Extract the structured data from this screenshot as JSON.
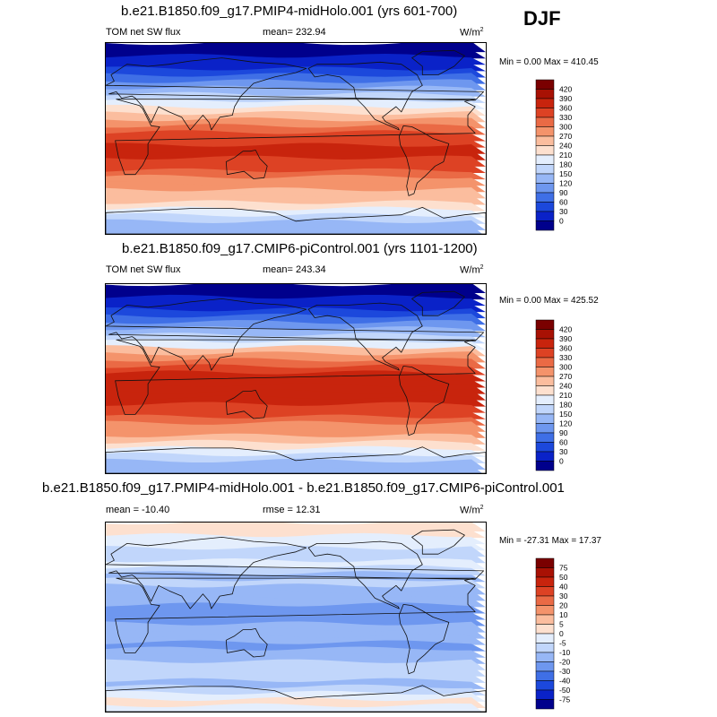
{
  "season": "DJF",
  "colors": {
    "sw": [
      "#00008c",
      "#0a22c8",
      "#1c48dc",
      "#3f6fe6",
      "#6e97ef",
      "#97b7f6",
      "#c1d6fb",
      "#e4eefd",
      "#fde0cf",
      "#fbbd9e",
      "#f4936b",
      "#ea6a45",
      "#dd4224",
      "#c8240d",
      "#a81104",
      "#7a0000"
    ],
    "diff": [
      "#00008c",
      "#0a22c8",
      "#1c48dc",
      "#3f6fe6",
      "#6e97ef",
      "#97b7f6",
      "#c1d6fb",
      "#e4eefd",
      "#fde0cf",
      "#fbbd9e",
      "#f4936b",
      "#ea6a45",
      "#dd4224",
      "#c8240d",
      "#a81104",
      "#7a0000"
    ]
  },
  "chart_data": [
    {
      "type": "heatmap",
      "title": "b.e21.B1850.f09_g17.PMIP4-midHolo.001 (yrs 601-700)",
      "variable": "TOM net SW flux",
      "mean_label": "mean= 232.94",
      "units": "W/m",
      "units_exp": "2",
      "min_max": "Min =   0.00 Max = 410.45",
      "min": 0.0,
      "max": 410.45,
      "mean": 232.94,
      "levels": [
        "420",
        "390",
        "360",
        "330",
        "300",
        "270",
        "240",
        "210",
        "180",
        "150",
        "120",
        "90",
        "60",
        "30",
        "0"
      ]
    },
    {
      "type": "heatmap",
      "title": "b.e21.B1850.f09_g17.CMIP6-piControl.001 (yrs 1101-1200)",
      "variable": "TOM net SW flux",
      "mean_label": "mean= 243.34",
      "units": "W/m",
      "units_exp": "2",
      "min_max": "Min =   0.00 Max = 425.52",
      "min": 0.0,
      "max": 425.52,
      "mean": 243.34,
      "levels": [
        "420",
        "390",
        "360",
        "330",
        "300",
        "270",
        "240",
        "210",
        "180",
        "150",
        "120",
        "90",
        "60",
        "30",
        "0"
      ]
    },
    {
      "type": "heatmap",
      "title": "b.e21.B1850.f09_g17.PMIP4-midHolo.001 - b.e21.B1850.f09_g17.CMIP6-piControl.001",
      "mean_label": "mean = -10.40",
      "rmse_label": "rmse =  12.31",
      "units": "W/m",
      "units_exp": "2",
      "min_max": "Min = -27.31 Max =  17.37",
      "min": -27.31,
      "max": 17.37,
      "mean": -10.4,
      "rmse": 12.31,
      "levels": [
        "75",
        "50",
        "40",
        "30",
        "20",
        "10",
        "5",
        "0",
        "-5",
        "-10",
        "-20",
        "-30",
        "-40",
        "-50",
        "-75"
      ]
    }
  ]
}
